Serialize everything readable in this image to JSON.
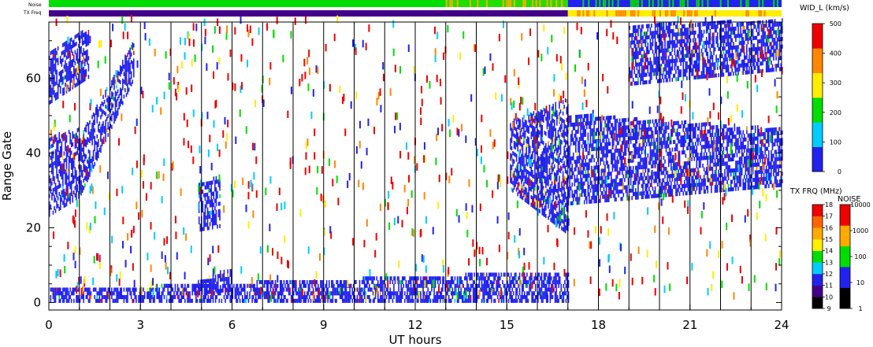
{
  "chart_data": {
    "type": "heatmap",
    "title": "",
    "xlabel": "UT hours",
    "ylabel": "Range Gate",
    "xlim": [
      0,
      24
    ],
    "ylim": [
      -2,
      75
    ],
    "x_ticks": [
      "0",
      "3",
      "6",
      "9",
      "12",
      "15",
      "18",
      "21",
      "24"
    ],
    "x_tick_values": [
      0,
      3,
      6,
      9,
      12,
      15,
      18,
      21,
      24
    ],
    "y_ticks": [
      "0",
      "20",
      "40",
      "60"
    ],
    "y_tick_values": [
      0,
      20,
      40,
      60
    ],
    "grid": "vertical lines at every hour",
    "status_bars": {
      "noise_label": "Noise",
      "txfreq_label": "TX Freq",
      "noise_segments": [
        {
          "from": 0,
          "to": 13.0,
          "color": "#00dd00"
        },
        {
          "from": 13.0,
          "to": 17.0,
          "color": "#22dd00",
          "speckle": "#ffaa00"
        },
        {
          "from": 17.0,
          "to": 24,
          "color": "#2222ee",
          "speckle": "#00dd00"
        }
      ],
      "txfreq_segments": [
        {
          "from": 0,
          "to": 17.0,
          "color": "#440088"
        },
        {
          "from": 17.0,
          "to": 24,
          "color": "#ffee00",
          "speckle": "#ff8800"
        }
      ]
    },
    "series": [
      {
        "type": "band",
        "x0": 0.0,
        "x1": 1.0,
        "y0_start": 23,
        "y0_end": 28,
        "y1_start": 44,
        "y1_end": 46
      },
      {
        "type": "band",
        "x0": 1.0,
        "x1": 2.8,
        "y0_start": 28,
        "y0_end": 60,
        "y1_start": 44,
        "y1_end": 70
      },
      {
        "type": "band",
        "x0": 0.0,
        "x1": 1.3,
        "y0_start": 53,
        "y0_end": 60,
        "y1_start": 66,
        "y1_end": 74
      },
      {
        "type": "band",
        "x0": 4.9,
        "x1": 5.6,
        "y0_start": 19,
        "y0_end": 20,
        "y1_start": 32,
        "y1_end": 33
      },
      {
        "type": "band",
        "x0": 15.1,
        "x1": 17.0,
        "y0_start": 30,
        "y0_end": 18,
        "y1_start": 48,
        "y1_end": 54
      },
      {
        "type": "band",
        "x0": 17.0,
        "x1": 24.0,
        "y0_start": 26,
        "y0_end": 31,
        "y1_start": 50,
        "y1_end": 46
      },
      {
        "type": "band",
        "x0": 19.0,
        "x1": 24.0,
        "y0_start": 58,
        "y0_end": 62,
        "y1_start": 74,
        "y1_end": 75
      },
      {
        "type": "band",
        "x0": 0.0,
        "x1": 17.0,
        "y0_start": 0,
        "y0_end": 0,
        "y1_start": 3,
        "y1_end": 8
      },
      {
        "type": "band",
        "x0": 4.8,
        "x1": 6.0,
        "y0_start": 2,
        "y0_end": 3,
        "y1_start": 5,
        "y1_end": 9
      }
    ],
    "colorbars": [
      {
        "title": "WID_L (km/s)",
        "ticks": [
          "500",
          "400",
          "300",
          "200",
          "100",
          "0"
        ],
        "tick_values": [
          500,
          400,
          300,
          200,
          100,
          0
        ],
        "range": [
          0,
          500
        ],
        "colors": [
          "#2222ee",
          "#00ccff",
          "#00dd00",
          "#ffee00",
          "#ff8800",
          "#ee0000"
        ]
      },
      {
        "title": "TX FRQ (MHz)",
        "ticks": [
          "18",
          "17",
          "16",
          "15",
          "14",
          "13",
          "12",
          "11",
          "10",
          "9"
        ],
        "tick_values": [
          18,
          17,
          16,
          15,
          14,
          13,
          12,
          11,
          10,
          9
        ],
        "range": [
          9,
          18
        ],
        "colors": [
          "#000000",
          "#440088",
          "#2222ee",
          "#00ccff",
          "#00dd00",
          "#ffee00",
          "#ffaa00",
          "#ff6600",
          "#ee0000"
        ]
      },
      {
        "title": "NOISE",
        "ticks": [
          "10000",
          "1000",
          "100",
          "10",
          "1"
        ],
        "tick_values": [
          10000,
          1000,
          100,
          10,
          1
        ],
        "range": [
          1,
          10000
        ],
        "scale": "log",
        "colors": [
          "#000000",
          "#2222ee",
          "#00dd00",
          "#ffaa00",
          "#ee0000"
        ]
      }
    ]
  }
}
